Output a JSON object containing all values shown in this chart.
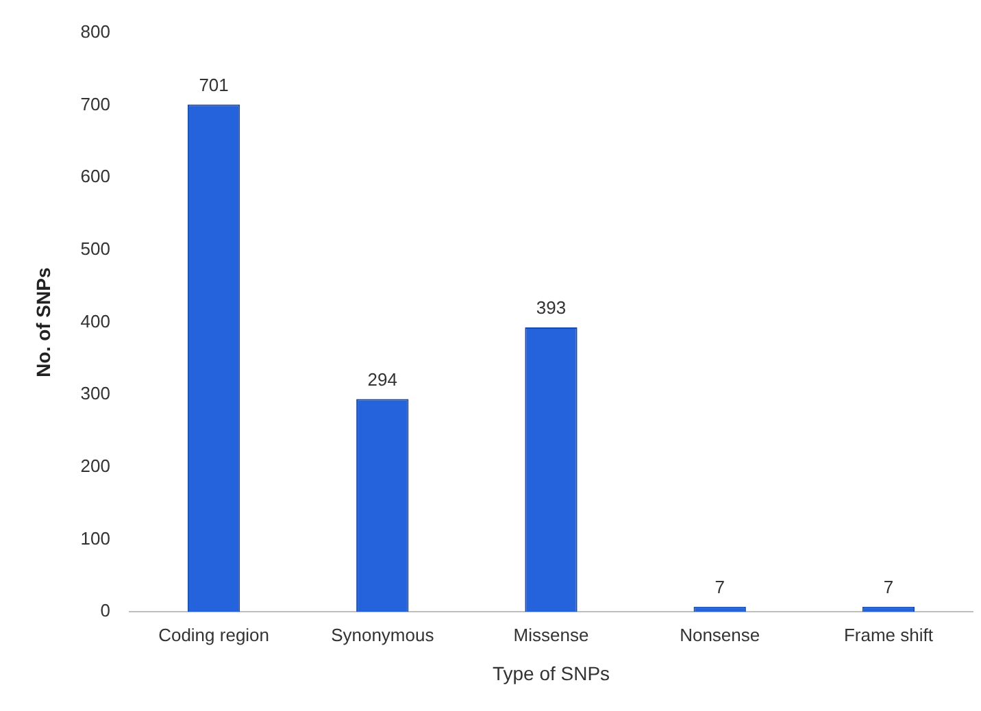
{
  "chart_data": {
    "type": "bar",
    "xlabel": "Type of SNPs",
    "ylabel": "No. of SNPs",
    "categories": [
      "Coding region",
      "Synonymous",
      "Missense",
      "Nonsense",
      "Frame shift"
    ],
    "values": [
      701,
      294,
      393,
      7,
      7
    ],
    "color": "#2563dc",
    "ylim": [
      0,
      800
    ],
    "yticks": [
      0,
      100,
      200,
      300,
      400,
      500,
      600,
      700,
      800
    ],
    "grid": false,
    "legend": false,
    "data_labels": true
  }
}
